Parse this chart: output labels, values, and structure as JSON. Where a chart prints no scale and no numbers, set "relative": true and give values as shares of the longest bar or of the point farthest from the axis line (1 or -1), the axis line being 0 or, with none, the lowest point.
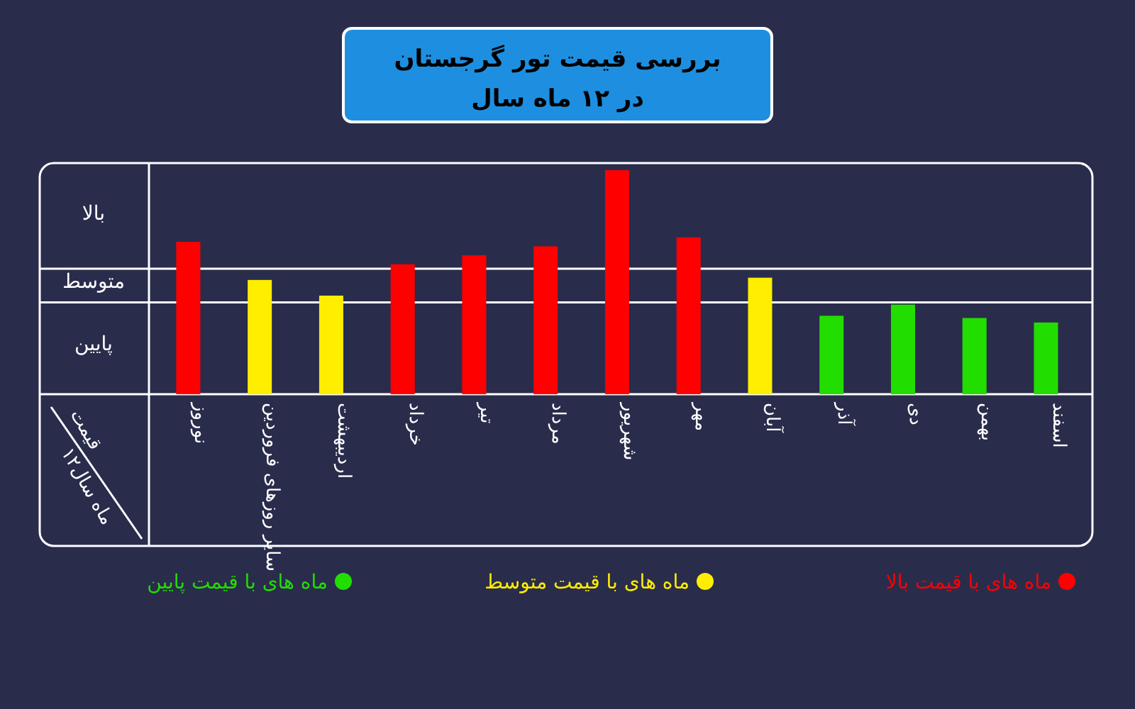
{
  "chart_data": {
    "type": "bar",
    "title": "بررسی قیمت تور گرجستان",
    "subtitle": "در ۱۲ ماه سال",
    "xlabel": "۱۲ماه سال",
    "ylabel": "قیمت",
    "relative": true,
    "legend": "bottom",
    "categories": [
      "نوروز",
      "سایر روزهای فروردین",
      "اردیبهشت",
      "خرداد",
      "تیر",
      "مرداد",
      "شهریور",
      "مهر",
      "آبان",
      "آذر",
      "دی",
      "بهمن",
      "اسفند"
    ],
    "series": [
      {
        "name": "ماه های با قیمت بالا",
        "color": "#ff0000",
        "values": [
          0.68,
          null,
          null,
          0.58,
          0.62,
          0.66,
          1.0,
          0.7,
          null,
          null,
          null,
          null,
          null
        ]
      },
      {
        "name": "ماه های با قیمت متوسط",
        "color": "#ffee00",
        "values": [
          null,
          0.51,
          0.44,
          null,
          null,
          null,
          null,
          null,
          0.52,
          null,
          null,
          null,
          null
        ]
      },
      {
        "name": "ماه های با قیمت پایین",
        "color": "#22dd00",
        "values": [
          null,
          null,
          null,
          null,
          null,
          null,
          null,
          null,
          null,
          0.35,
          0.4,
          0.34,
          0.32
        ]
      }
    ],
    "ref_lines": [
      {
        "axis": "y",
        "value": 0.41,
        "color": "#ffffff"
      },
      {
        "axis": "y",
        "value": 0.56,
        "color": "#ffffff"
      }
    ],
    "annotations": [
      "پایین",
      "متوسط",
      "بالا"
    ]
  }
}
